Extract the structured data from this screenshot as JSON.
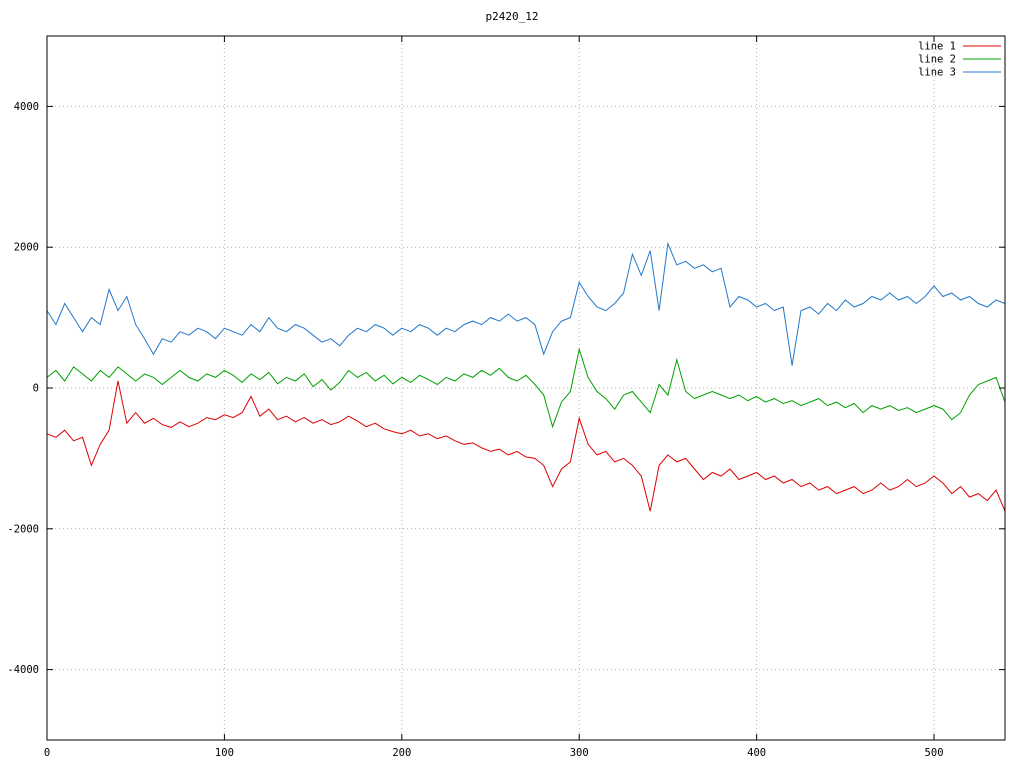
{
  "page": {
    "background": "#ffffff"
  },
  "chart_data": {
    "type": "line",
    "title": "p2420_12",
    "xlabel": "",
    "ylabel": "",
    "xlim": [
      0,
      540
    ],
    "ylim": [
      -5000,
      5000
    ],
    "xticks": [
      0,
      100,
      200,
      300,
      400,
      500
    ],
    "yticks": [
      -4000,
      -2000,
      0,
      2000,
      4000
    ],
    "grid": true,
    "grid_style": "dotted",
    "grid_color": "#b0b0b0",
    "border_color": "#000000",
    "legend_position": "top-right",
    "x": [
      0,
      5,
      10,
      15,
      20,
      25,
      30,
      35,
      40,
      45,
      50,
      55,
      60,
      65,
      70,
      75,
      80,
      85,
      90,
      95,
      100,
      105,
      110,
      115,
      120,
      125,
      130,
      135,
      140,
      145,
      150,
      155,
      160,
      165,
      170,
      175,
      180,
      185,
      190,
      195,
      200,
      205,
      210,
      215,
      220,
      225,
      230,
      235,
      240,
      245,
      250,
      255,
      260,
      265,
      270,
      275,
      280,
      285,
      290,
      295,
      300,
      305,
      310,
      315,
      320,
      325,
      330,
      335,
      340,
      345,
      350,
      355,
      360,
      365,
      370,
      375,
      380,
      385,
      390,
      395,
      400,
      405,
      410,
      415,
      420,
      425,
      430,
      435,
      440,
      445,
      450,
      455,
      460,
      465,
      470,
      475,
      480,
      485,
      490,
      495,
      500,
      505,
      510,
      515,
      520,
      525,
      530,
      535,
      540
    ],
    "series": [
      {
        "name": "line 1",
        "color": "#dd0000",
        "values": [
          -650,
          -700,
          -600,
          -750,
          -700,
          -1100,
          -800,
          -600,
          100,
          -500,
          -350,
          -500,
          -430,
          -520,
          -560,
          -480,
          -550,
          -500,
          -420,
          -450,
          -380,
          -420,
          -350,
          -120,
          -400,
          -300,
          -450,
          -400,
          -480,
          -420,
          -500,
          -450,
          -520,
          -480,
          -400,
          -470,
          -550,
          -500,
          -580,
          -620,
          -650,
          -600,
          -680,
          -650,
          -720,
          -680,
          -750,
          -800,
          -780,
          -850,
          -900,
          -870,
          -950,
          -900,
          -980,
          -1000,
          -1100,
          -1400,
          -1150,
          -1050,
          -430,
          -800,
          -950,
          -900,
          -1050,
          -1000,
          -1100,
          -1250,
          -1750,
          -1100,
          -950,
          -1050,
          -1000,
          -1150,
          -1300,
          -1200,
          -1250,
          -1150,
          -1300,
          -1250,
          -1200,
          -1300,
          -1250,
          -1350,
          -1300,
          -1400,
          -1350,
          -1450,
          -1400,
          -1500,
          -1450,
          -1400,
          -1500,
          -1450,
          -1350,
          -1450,
          -1400,
          -1300,
          -1400,
          -1350,
          -1250,
          -1350,
          -1500,
          -1400,
          -1550,
          -1500,
          -1600,
          -1450,
          -1750
        ]
      },
      {
        "name": "line 2",
        "color": "#00a000",
        "values": [
          150,
          250,
          100,
          300,
          200,
          100,
          250,
          150,
          300,
          200,
          100,
          200,
          150,
          50,
          150,
          250,
          150,
          100,
          200,
          150,
          250,
          180,
          80,
          200,
          120,
          220,
          60,
          150,
          100,
          200,
          20,
          120,
          -30,
          80,
          250,
          150,
          220,
          100,
          180,
          60,
          150,
          80,
          180,
          120,
          50,
          150,
          100,
          200,
          150,
          250,
          180,
          280,
          150,
          100,
          180,
          50,
          -100,
          -550,
          -200,
          -50,
          550,
          150,
          -50,
          -150,
          -300,
          -100,
          -50,
          -200,
          -350,
          50,
          -100,
          400,
          -50,
          -150,
          -100,
          -50,
          -100,
          -150,
          -100,
          -180,
          -120,
          -200,
          -150,
          -220,
          -180,
          -250,
          -200,
          -150,
          -250,
          -200,
          -280,
          -220,
          -350,
          -250,
          -300,
          -250,
          -320,
          -280,
          -350,
          -300,
          -250,
          -300,
          -450,
          -350,
          -100,
          50,
          100,
          150,
          -200
        ]
      },
      {
        "name": "line 3",
        "color": "#2277cc",
        "values": [
          1100,
          900,
          1200,
          1000,
          800,
          1000,
          900,
          1400,
          1100,
          1300,
          900,
          700,
          480,
          700,
          650,
          800,
          750,
          850,
          800,
          700,
          850,
          800,
          750,
          900,
          800,
          1000,
          850,
          800,
          900,
          850,
          750,
          650,
          700,
          600,
          750,
          850,
          800,
          900,
          850,
          750,
          850,
          800,
          900,
          850,
          750,
          850,
          800,
          900,
          950,
          900,
          1000,
          950,
          1050,
          950,
          1000,
          900,
          480,
          800,
          950,
          1000,
          1500,
          1300,
          1150,
          1100,
          1200,
          1350,
          1900,
          1600,
          1950,
          1100,
          2050,
          1750,
          1800,
          1700,
          1750,
          1650,
          1700,
          1150,
          1300,
          1250,
          1150,
          1200,
          1100,
          1150,
          320,
          1100,
          1150,
          1050,
          1200,
          1100,
          1250,
          1150,
          1200,
          1300,
          1250,
          1350,
          1250,
          1300,
          1200,
          1300,
          1450,
          1300,
          1350,
          1250,
          1300,
          1200,
          1150,
          1250,
          1200
        ]
      }
    ]
  }
}
